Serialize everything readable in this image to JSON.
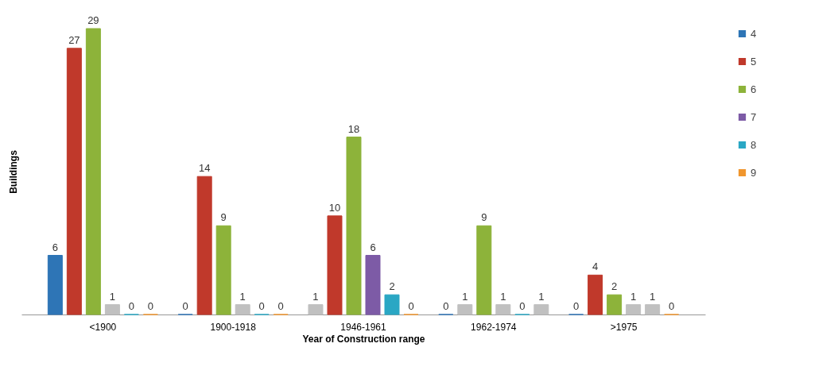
{
  "chart_data": {
    "type": "bar",
    "xlabel": "Year of Construction range",
    "ylabel": "Buildings",
    "categories": [
      "<1900",
      "1900-1918",
      "1946-1961",
      "1962-1974",
      ">1975"
    ],
    "series": [
      {
        "name": "4",
        "color": "#2e75b6",
        "values": [
          6,
          0,
          1,
          0,
          0
        ],
        "colors": [
          "#2e75b6",
          "#2e75b6",
          "#c0c0c0",
          "#2e75b6",
          "#2e75b6"
        ]
      },
      {
        "name": "5",
        "color": "#c0392b",
        "values": [
          27,
          14,
          10,
          1,
          4
        ],
        "colors": [
          "#c0392b",
          "#c0392b",
          "#c0392b",
          "#c0c0c0",
          "#c0392b"
        ]
      },
      {
        "name": "6",
        "color": "#8db33a",
        "values": [
          29,
          9,
          18,
          9,
          2
        ],
        "colors": [
          "#8db33a",
          "#8db33a",
          "#8db33a",
          "#8db33a",
          "#8db33a"
        ]
      },
      {
        "name": "7",
        "color": "#7d5ba6",
        "values": [
          1,
          1,
          6,
          1,
          1
        ],
        "colors": [
          "#c0c0c0",
          "#c0c0c0",
          "#7d5ba6",
          "#c0c0c0",
          "#c0c0c0"
        ]
      },
      {
        "name": "8",
        "color": "#2aa7c4",
        "values": [
          0,
          0,
          2,
          0,
          1
        ],
        "colors": [
          "#2aa7c4",
          "#2aa7c4",
          "#2aa7c4",
          "#2aa7c4",
          "#c0c0c0"
        ]
      },
      {
        "name": "9",
        "color": "#f0962e",
        "values": [
          0,
          0,
          0,
          1,
          0
        ],
        "colors": [
          "#f0962e",
          "#f0962e",
          "#f0962e",
          "#c0c0c0",
          "#f0962e"
        ]
      }
    ],
    "data_labels": true,
    "grid": false,
    "legend": "right"
  }
}
